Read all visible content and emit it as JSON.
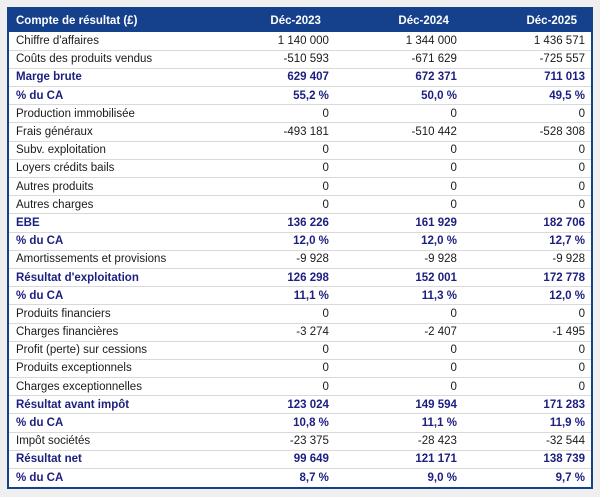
{
  "chart_data": {
    "type": "table",
    "title": "Compte de résultat (£)",
    "columns": [
      "Compte de résultat (£)",
      "Déc-2023",
      "Déc-2024",
      "Déc-2025"
    ],
    "rows": [
      {
        "label": "Chiffre d'affaires",
        "values": [
          "1 140 000",
          "1 344 000",
          "1 436 571"
        ],
        "bold": false
      },
      {
        "label": "Coûts des produits vendus",
        "values": [
          "-510 593",
          "-671 629",
          "-725 557"
        ],
        "bold": false
      },
      {
        "label": "Marge brute",
        "values": [
          "629 407",
          "672 371",
          "711 013"
        ],
        "bold": true
      },
      {
        "label": "% du CA",
        "values": [
          "55,2 %",
          "50,0 %",
          "49,5 %"
        ],
        "bold": true
      },
      {
        "label": "Production immobilisée",
        "values": [
          "0",
          "0",
          "0"
        ],
        "bold": false
      },
      {
        "label": "Frais généraux",
        "values": [
          "-493 181",
          "-510 442",
          "-528 308"
        ],
        "bold": false
      },
      {
        "label": "Subv. exploitation",
        "values": [
          "0",
          "0",
          "0"
        ],
        "bold": false
      },
      {
        "label": "Loyers crédits bails",
        "values": [
          "0",
          "0",
          "0"
        ],
        "bold": false
      },
      {
        "label": "Autres produits",
        "values": [
          "0",
          "0",
          "0"
        ],
        "bold": false
      },
      {
        "label": "Autres charges",
        "values": [
          "0",
          "0",
          "0"
        ],
        "bold": false
      },
      {
        "label": "EBE",
        "values": [
          "136 226",
          "161 929",
          "182 706"
        ],
        "bold": true
      },
      {
        "label": "% du CA",
        "values": [
          "12,0 %",
          "12,0 %",
          "12,7 %"
        ],
        "bold": true
      },
      {
        "label": "Amortissements et provisions",
        "values": [
          "-9 928",
          "-9 928",
          "-9 928"
        ],
        "bold": false
      },
      {
        "label": "Résultat d'exploitation",
        "values": [
          "126 298",
          "152 001",
          "172 778"
        ],
        "bold": true
      },
      {
        "label": "% du CA",
        "values": [
          "11,1 %",
          "11,3 %",
          "12,0 %"
        ],
        "bold": true
      },
      {
        "label": "Produits financiers",
        "values": [
          "0",
          "0",
          "0"
        ],
        "bold": false
      },
      {
        "label": "Charges financières",
        "values": [
          "-3 274",
          "-2 407",
          "-1 495"
        ],
        "bold": false
      },
      {
        "label": "Profit (perte) sur cessions",
        "values": [
          "0",
          "0",
          "0"
        ],
        "bold": false
      },
      {
        "label": "Produits exceptionnels",
        "values": [
          "0",
          "0",
          "0"
        ],
        "bold": false
      },
      {
        "label": "Charges exceptionnelles",
        "values": [
          "0",
          "0",
          "0"
        ],
        "bold": false
      },
      {
        "label": "Résultat avant impôt",
        "values": [
          "123 024",
          "149 594",
          "171 283"
        ],
        "bold": true
      },
      {
        "label": "% du CA",
        "values": [
          "10,8 %",
          "11,1 %",
          "11,9 %"
        ],
        "bold": true
      },
      {
        "label": "Impôt sociétés",
        "values": [
          "-23 375",
          "-28 423",
          "-32 544"
        ],
        "bold": false
      },
      {
        "label": "Résultat net",
        "values": [
          "99 649",
          "121 171",
          "138 739"
        ],
        "bold": true
      },
      {
        "label": "% du CA",
        "values": [
          "8,7 %",
          "9,0 %",
          "9,7 %"
        ],
        "bold": true
      }
    ],
    "layout": {
      "header_alignment": "label-left-values-right",
      "grid": "horizontal-separators-only"
    }
  },
  "header": {
    "title": "Compte de résultat (£)",
    "col_2023": "Déc-2023",
    "col_2024": "Déc-2024",
    "col_2025": "Déc-2025"
  },
  "colors": {
    "header_background": "#14408c",
    "table_border": "#14408c",
    "bold_row_text": "#1e2080",
    "normal_row_text": "#1a1a1a",
    "row_separator": "#d9d9d9",
    "page_background": "#efefef",
    "header_text": "#ffffff",
    "table_background": "#ffffff"
  }
}
